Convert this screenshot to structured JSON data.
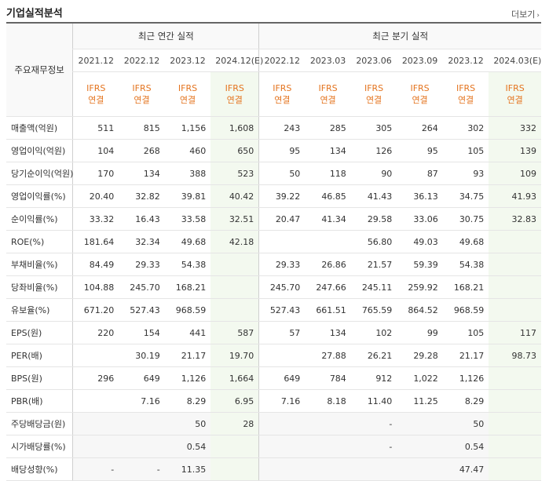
{
  "title": "기업실적분석",
  "more_label": "더보기",
  "header": {
    "row_label": "주요재무정보",
    "annual_group": "최근 연간 실적",
    "quarter_group": "최근 분기 실적",
    "annual_periods": [
      "2021.12",
      "2022.12",
      "2023.12",
      "2024.12(E)"
    ],
    "quarter_periods": [
      "2022.12",
      "2023.03",
      "2023.06",
      "2023.09",
      "2023.12",
      "2024.03(E)"
    ],
    "ifrs_top": "IFRS",
    "ifrs_bottom": "연결"
  },
  "rows": [
    {
      "label": "매출액(억원)",
      "values": [
        "511",
        "815",
        "1,156",
        "1,608",
        "243",
        "285",
        "305",
        "264",
        "302",
        "332"
      ]
    },
    {
      "label": "영업이익(억원)",
      "values": [
        "104",
        "268",
        "460",
        "650",
        "95",
        "134",
        "126",
        "95",
        "105",
        "139"
      ]
    },
    {
      "label": "당기순이익(억원)",
      "values": [
        "170",
        "134",
        "388",
        "523",
        "50",
        "118",
        "90",
        "87",
        "93",
        "109"
      ]
    },
    {
      "label": "영업이익률(%)",
      "values": [
        "20.40",
        "32.82",
        "39.81",
        "40.42",
        "39.22",
        "46.85",
        "41.43",
        "36.13",
        "34.75",
        "41.93"
      ]
    },
    {
      "label": "순이익률(%)",
      "values": [
        "33.32",
        "16.43",
        "33.58",
        "32.51",
        "20.47",
        "41.34",
        "29.58",
        "33.06",
        "30.75",
        "32.83"
      ]
    },
    {
      "label": "ROE(%)",
      "values": [
        "181.64",
        "32.34",
        "49.68",
        "42.18",
        "",
        "",
        "56.80",
        "49.03",
        "49.68",
        ""
      ]
    },
    {
      "label": "부채비율(%)",
      "values": [
        "84.49",
        "29.33",
        "54.38",
        "",
        "29.33",
        "26.86",
        "21.57",
        "59.39",
        "54.38",
        ""
      ]
    },
    {
      "label": "당좌비율(%)",
      "values": [
        "104.88",
        "245.70",
        "168.21",
        "",
        "245.70",
        "247.66",
        "245.11",
        "259.92",
        "168.21",
        ""
      ]
    },
    {
      "label": "유보율(%)",
      "values": [
        "671.20",
        "527.43",
        "968.59",
        "",
        "527.43",
        "661.51",
        "765.59",
        "864.52",
        "968.59",
        ""
      ]
    },
    {
      "label": "EPS(원)",
      "values": [
        "220",
        "154",
        "441",
        "587",
        "57",
        "134",
        "102",
        "99",
        "105",
        "117"
      ]
    },
    {
      "label": "PER(배)",
      "values": [
        "",
        "30.19",
        "21.17",
        "19.70",
        "",
        "27.88",
        "26.21",
        "29.28",
        "21.17",
        "98.73"
      ]
    },
    {
      "label": "BPS(원)",
      "values": [
        "296",
        "649",
        "1,126",
        "1,664",
        "649",
        "784",
        "912",
        "1,022",
        "1,126",
        ""
      ]
    },
    {
      "label": "PBR(배)",
      "values": [
        "",
        "7.16",
        "8.29",
        "6.95",
        "7.16",
        "8.18",
        "11.40",
        "11.25",
        "8.29",
        ""
      ]
    },
    {
      "label": "주당배당금(원)",
      "values": [
        "",
        "",
        "50",
        "28",
        "",
        "",
        "-",
        "",
        "50",
        ""
      ]
    },
    {
      "label": "시가배당률(%)",
      "values": [
        "",
        "",
        "0.54",
        "",
        "",
        "",
        "-",
        "",
        "0.54",
        ""
      ]
    },
    {
      "label": "배당성향(%)",
      "values": [
        "-",
        "-",
        "11.35",
        "",
        "",
        "",
        "",
        "",
        "47.47",
        ""
      ]
    }
  ]
}
